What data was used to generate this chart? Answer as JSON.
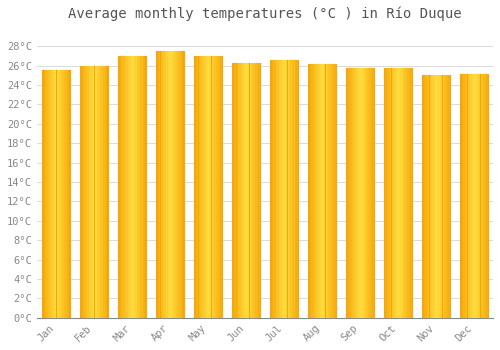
{
  "title": "Average monthly temperatures (°C ) in Río Duque",
  "months": [
    "Jan",
    "Feb",
    "Mar",
    "Apr",
    "May",
    "Jun",
    "Jul",
    "Aug",
    "Sep",
    "Oct",
    "Nov",
    "Dec"
  ],
  "values": [
    25.5,
    26.0,
    27.0,
    27.5,
    27.0,
    26.3,
    26.6,
    26.2,
    25.8,
    25.8,
    25.0,
    25.1
  ],
  "ylim": [
    0,
    30
  ],
  "yticks": [
    0,
    2,
    4,
    6,
    8,
    10,
    12,
    14,
    16,
    18,
    20,
    22,
    24,
    26,
    28
  ],
  "bar_color_center": "#FFD740",
  "bar_color_edge": "#F5A800",
  "bar_edge_color": "#E8960A",
  "background_color": "#FFFFFF",
  "grid_color": "#CCCCCC",
  "title_fontsize": 10,
  "tick_fontsize": 7.5,
  "tick_color": "#888888",
  "font_family": "monospace"
}
